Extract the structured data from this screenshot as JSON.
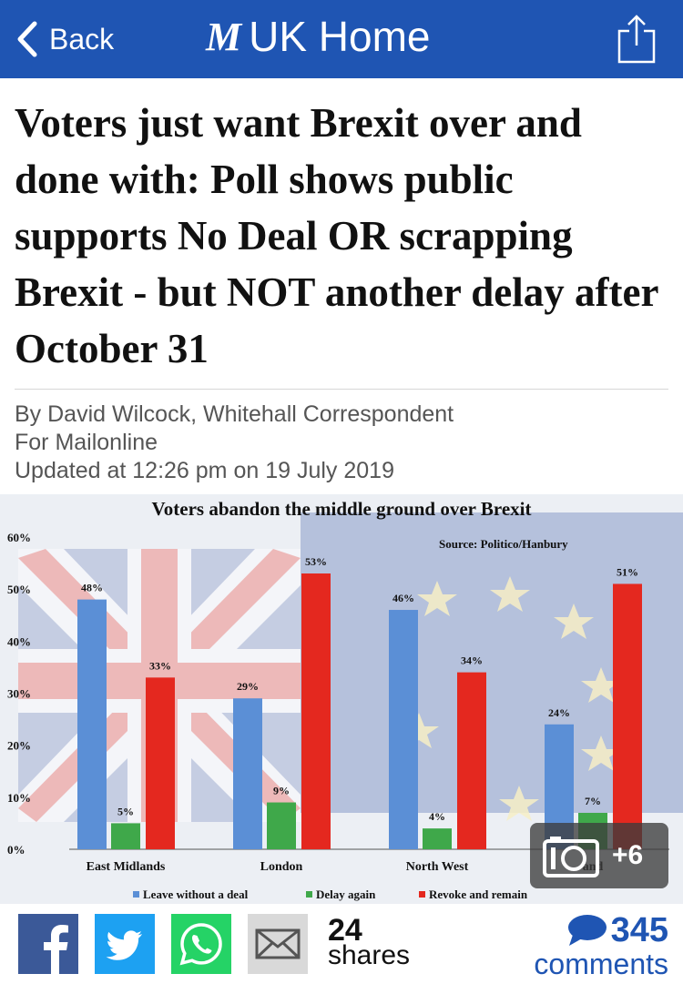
{
  "header": {
    "back_label": "Back",
    "brand_logo": "M",
    "brand_title": "UK Home",
    "bar_color": "#1f55b3"
  },
  "article": {
    "headline": "Voters just want Brexit over and done with: Poll shows public supports No Deal OR scrapping Brexit - but NOT another delay after October 31",
    "byline_author": "By David Wilcock, Whitehall Correspondent",
    "byline_outlet": "For Mailonline",
    "updated": "Updated at 12:26 pm on 19 July 2019"
  },
  "chart_data": {
    "type": "bar",
    "title": "Voters abandon the middle ground over Brexit",
    "source": "Source: Politico/Hanbury",
    "categories": [
      "East Midlands",
      "London",
      "North West",
      "Scotland"
    ],
    "category_labels_visible": [
      "East Midlands",
      "London",
      "North West",
      "and"
    ],
    "series": [
      {
        "name": "Leave without a deal",
        "color": "#5b8fd6",
        "values": [
          48,
          29,
          46,
          24
        ]
      },
      {
        "name": "Delay again",
        "color": "#3fa84a",
        "values": [
          5,
          9,
          4,
          7
        ]
      },
      {
        "name": "Revoke and remain",
        "color": "#e4281f",
        "values": [
          33,
          53,
          34,
          51
        ]
      }
    ],
    "ylim": [
      0,
      60
    ],
    "yticks": [
      "0%",
      "10%",
      "20%",
      "30%",
      "40%",
      "50%",
      "60%"
    ],
    "legend_position": "bottom",
    "xlabel": "",
    "ylabel": ""
  },
  "gallery": {
    "count_label": "+6",
    "icon": "camera-icon"
  },
  "sharebar": {
    "icons": [
      "facebook-icon",
      "twitter-icon",
      "whatsapp-icon",
      "email-icon"
    ],
    "share_count": "24",
    "share_label": "shares",
    "comment_count": "345",
    "comment_label": "comments"
  }
}
